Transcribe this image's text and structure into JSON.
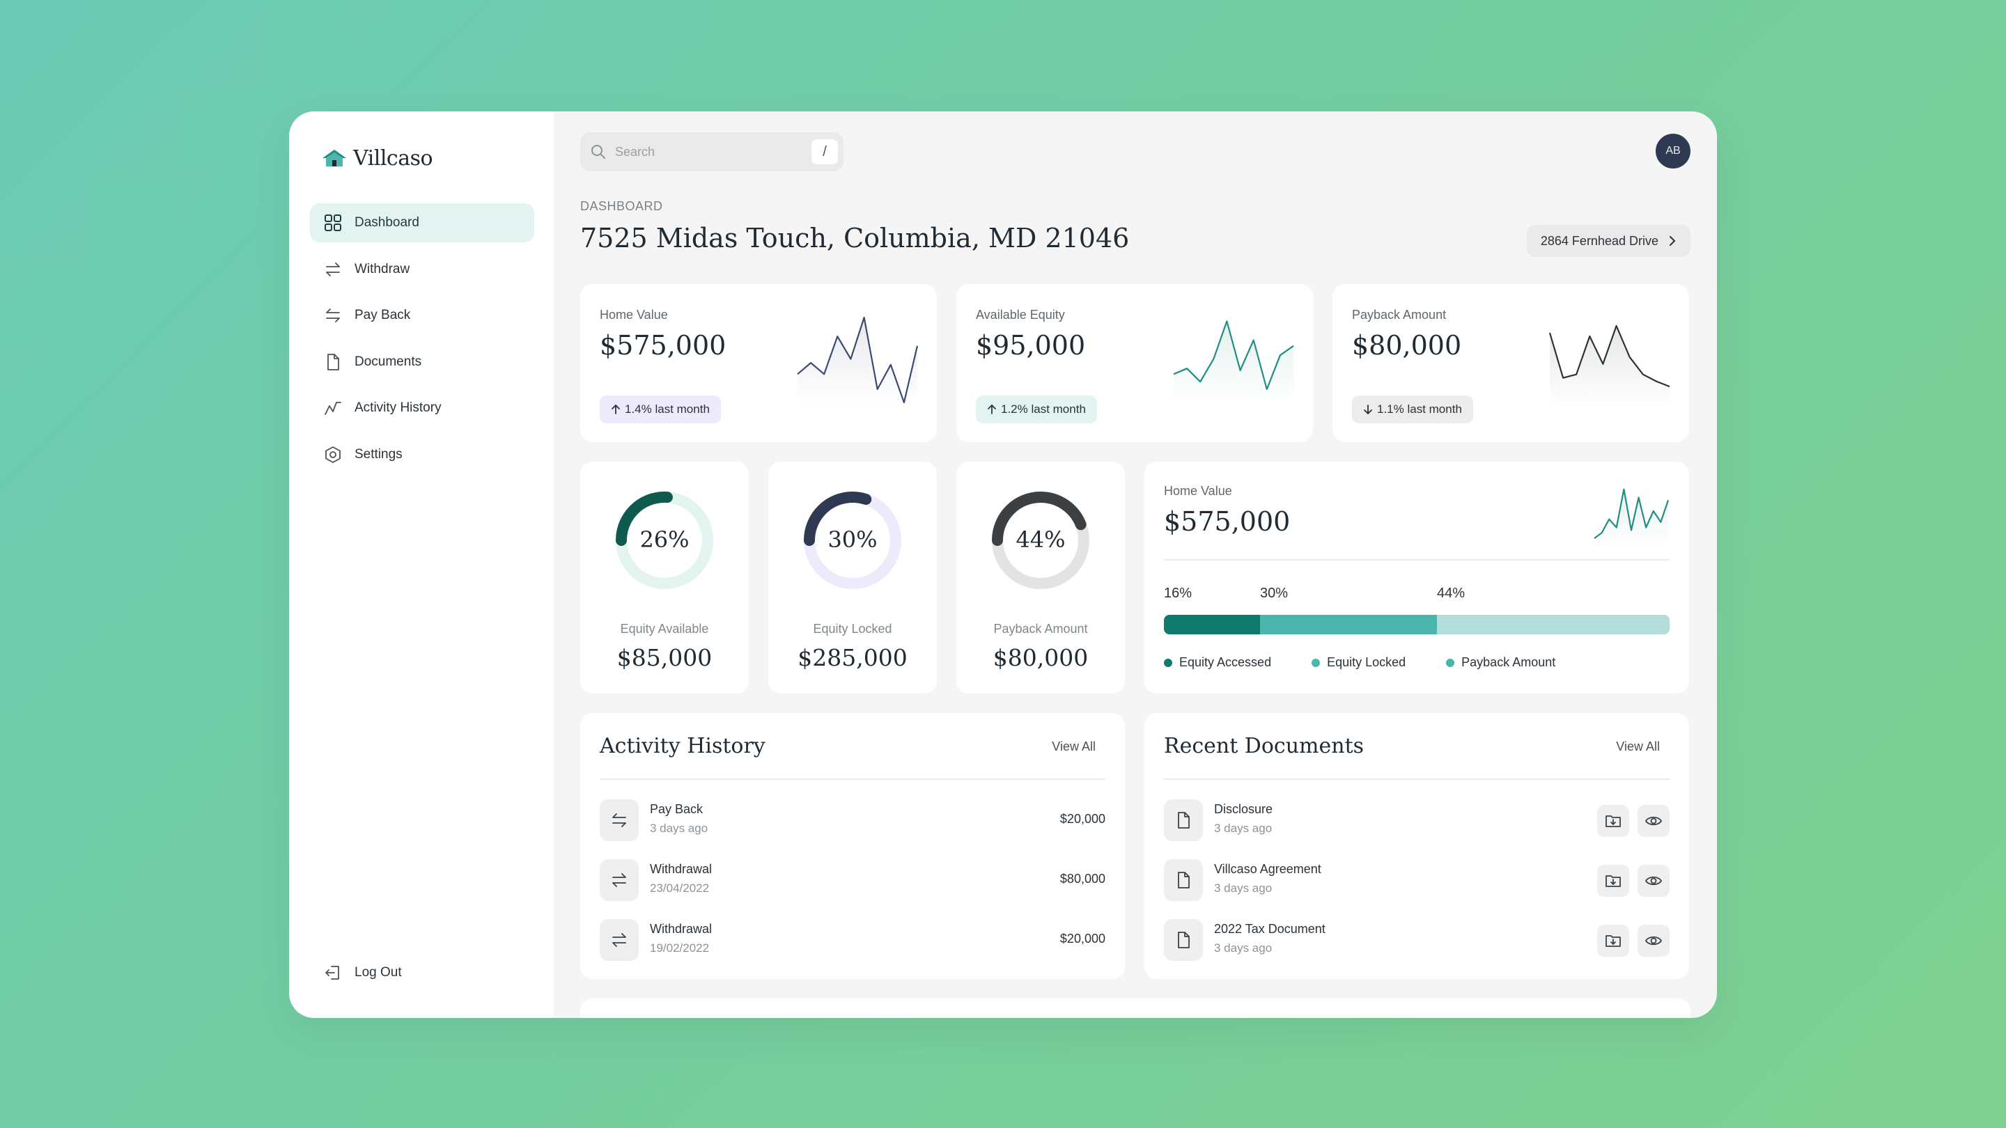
{
  "brand": {
    "name": "Villcaso"
  },
  "sidebar": {
    "items": [
      {
        "label": "Dashboard",
        "icon": "grid-icon",
        "active": true
      },
      {
        "label": "Withdraw",
        "icon": "transfer-icon"
      },
      {
        "label": "Pay Back",
        "icon": "transfer-icon"
      },
      {
        "label": "Documents",
        "icon": "document-icon"
      },
      {
        "label": "Activity History",
        "icon": "activity-icon"
      },
      {
        "label": "Settings",
        "icon": "hexagon-settings-icon"
      }
    ],
    "logout_label": "Log Out"
  },
  "header": {
    "search_placeholder": "Search",
    "search_shortcut": "/",
    "avatar_initials": "AB",
    "breadcrumb": "DASHBOARD",
    "title": "7525 Midas Touch, Columbia, MD 21046",
    "property_switch_label": "2864 Fernhead Drive"
  },
  "stats": [
    {
      "label": "Home Value",
      "value": "$575,000",
      "change": "1.4% last month",
      "direction": "up",
      "pill_bg": "#eceafb",
      "line": "#3e4a6e",
      "spark": [
        30,
        24,
        30,
        10,
        22,
        0,
        38,
        25,
        45,
        15
      ]
    },
    {
      "label": "Available Equity",
      "value": "$95,000",
      "change": "1.2% last month",
      "direction": "up",
      "pill_bg": "#e2f3f0",
      "line": "#1f8f82",
      "spark": [
        30,
        27,
        34,
        22,
        2,
        28,
        12,
        38,
        20,
        15
      ]
    },
    {
      "label": "Payback Amount",
      "value": "$80,000",
      "change": "1.1% last month",
      "direction": "down",
      "pill_bg": "#ececec",
      "line": "#2b3238",
      "spark": [
        4,
        30,
        28,
        6,
        22,
        0,
        18,
        28,
        32,
        35
      ]
    }
  ],
  "donuts": [
    {
      "pct": 26,
      "pct_label": "26%",
      "label": "Equity Available",
      "value": "$85,000",
      "color": "#0f5a4f",
      "track": "#e2f3f0"
    },
    {
      "pct": 30,
      "pct_label": "30%",
      "label": "Equity Locked",
      "value": "$285,000",
      "color": "#2d3a52",
      "track": "#eceafb"
    },
    {
      "pct": 44,
      "pct_label": "44%",
      "label": "Payback Amount",
      "value": "$80,000",
      "color": "#3d4042",
      "track": "#e3e3e3"
    }
  ],
  "home_value_card": {
    "label": "Home Value",
    "value": "$575,000",
    "spark_color": "#1f8f82",
    "spark": [
      42,
      38,
      28,
      34,
      6,
      36,
      12,
      34,
      22,
      30,
      14
    ],
    "segments": [
      {
        "pct": 16,
        "label": "16%",
        "name": "Equity Accessed",
        "color": "#0f7a6c"
      },
      {
        "pct": 30,
        "label": "30%",
        "name": "Equity Locked",
        "color": "#4cb5ad"
      },
      {
        "pct": 44,
        "label": "44%",
        "name": "Payback Amount",
        "color": "#b2ddd8"
      }
    ]
  },
  "activity": {
    "title": "Activity History",
    "view_all": "View All",
    "rows": [
      {
        "title": "Pay Back",
        "sub": "3 days ago",
        "amount": "$20,000"
      },
      {
        "title": "Withdrawal",
        "sub": "23/04/2022",
        "amount": "$80,000"
      },
      {
        "title": "Withdrawal",
        "sub": "19/02/2022",
        "amount": "$20,000"
      }
    ]
  },
  "documents": {
    "title": "Recent Documents",
    "view_all": "View All",
    "rows": [
      {
        "title": "Disclosure",
        "sub": "3 days ago"
      },
      {
        "title": "Villcaso Agreement",
        "sub": "3 days ago"
      },
      {
        "title": "2022 Tax Document",
        "sub": "3 days ago"
      }
    ]
  }
}
